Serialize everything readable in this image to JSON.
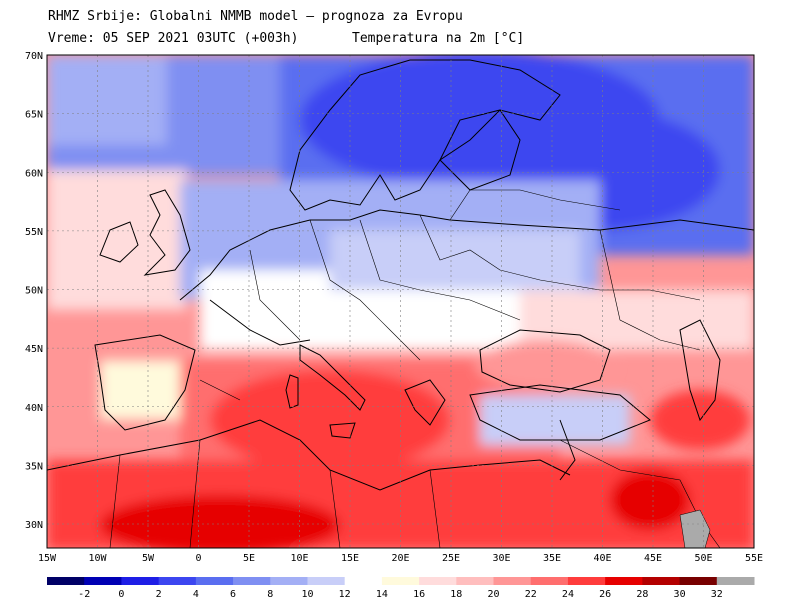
{
  "header": {
    "line1": "RHMZ Srbije: Globalni NMMB model — prognoza za Evropu",
    "line2_left": "Vreme: 05 SEP 2021 03UTC (+003h)",
    "line2_right": "Temperatura na 2m [°C]"
  },
  "axes": {
    "lat_labels": [
      "70N",
      "65N",
      "60N",
      "55N",
      "50N",
      "45N",
      "40N",
      "35N",
      "30N"
    ],
    "lon_labels": [
      "15W",
      "10W",
      "5W",
      "0",
      "5E",
      "10E",
      "15E",
      "20E",
      "25E",
      "30E",
      "35E",
      "40E",
      "45E",
      "50E",
      "55E"
    ]
  },
  "legend": {
    "labels": [
      "-2",
      "0",
      "2",
      "4",
      "6",
      "8",
      "10",
      "12",
      "14",
      "16",
      "18",
      "20",
      "22",
      "24",
      "26",
      "28",
      "30",
      "32"
    ],
    "colors": [
      "#000066",
      "#0000b4",
      "#1e1ee6",
      "#3c46f0",
      "#5a6ef0",
      "#7f8ff2",
      "#a3aff5",
      "#c8cef8",
      "#ffffff",
      "#fffadc",
      "#ffdcdc",
      "#ffbebe",
      "#ff9696",
      "#ff6e6e",
      "#ff3c3c",
      "#e60000",
      "#b40000",
      "#780000",
      "#aaaaaa"
    ]
  },
  "colors": {
    "cold_north": "#3c46f0",
    "cool": "#a3aff5",
    "neutral": "#ffffff",
    "warm": "#ffbebe",
    "hot": "#ff3c3c",
    "very_hot": "#b40000",
    "gridline": "#808080",
    "border": "#000000"
  }
}
